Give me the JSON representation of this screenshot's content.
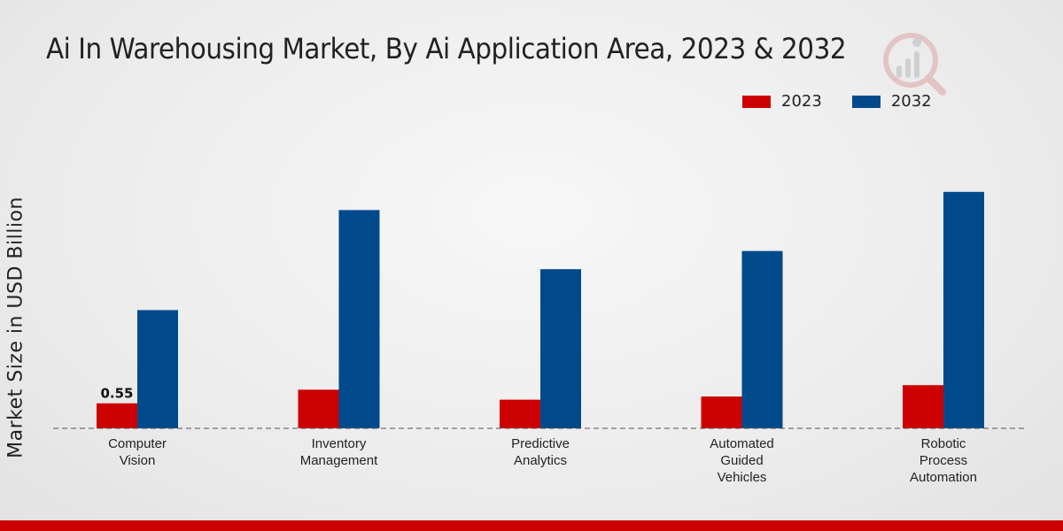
{
  "chart_data": {
    "type": "bar",
    "title": "Ai In Warehousing Market, By Ai Application Area, 2023 & 2032",
    "ylabel": "Market Size in USD Billion",
    "xlabel": "",
    "categories": [
      [
        "Computer",
        "Vision"
      ],
      [
        "Inventory",
        "Management"
      ],
      [
        "Predictive",
        "Analytics"
      ],
      [
        "Automated",
        "Guided",
        "Vehicles"
      ],
      [
        "Robotic",
        "Process",
        "Automation"
      ]
    ],
    "series": [
      {
        "name": "2023",
        "color": "#cc0000",
        "values": [
          0.55,
          0.85,
          0.63,
          0.7,
          0.95
        ]
      },
      {
        "name": "2032",
        "color": "#004a8c",
        "values": [
          2.6,
          4.8,
          3.5,
          3.9,
          5.2
        ]
      }
    ],
    "data_labels": [
      {
        "series": 0,
        "index": 0,
        "text": "0.55"
      }
    ],
    "ylim": [
      0,
      6.5
    ],
    "grid": false,
    "legend_position": "top-right",
    "bottom_bar_color": "#cc0000"
  }
}
